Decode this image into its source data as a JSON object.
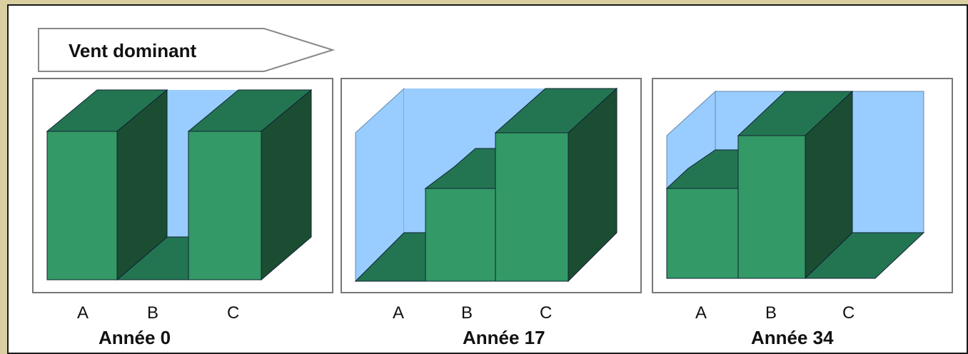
{
  "wind_label": "Vent dominant",
  "colors": {
    "block_front": "#339966",
    "block_top": "#237552",
    "block_side": "#1b4d33",
    "sky": "#99ccff",
    "panel_border": "#777777"
  },
  "panels": [
    {
      "year_label": "Année 0",
      "labels": [
        "A",
        "B",
        "C"
      ]
    },
    {
      "year_label": "Année 17",
      "labels": [
        "A",
        "B",
        "C"
      ]
    },
    {
      "year_label": "Année 34",
      "labels": [
        "A",
        "B",
        "C"
      ]
    }
  ]
}
